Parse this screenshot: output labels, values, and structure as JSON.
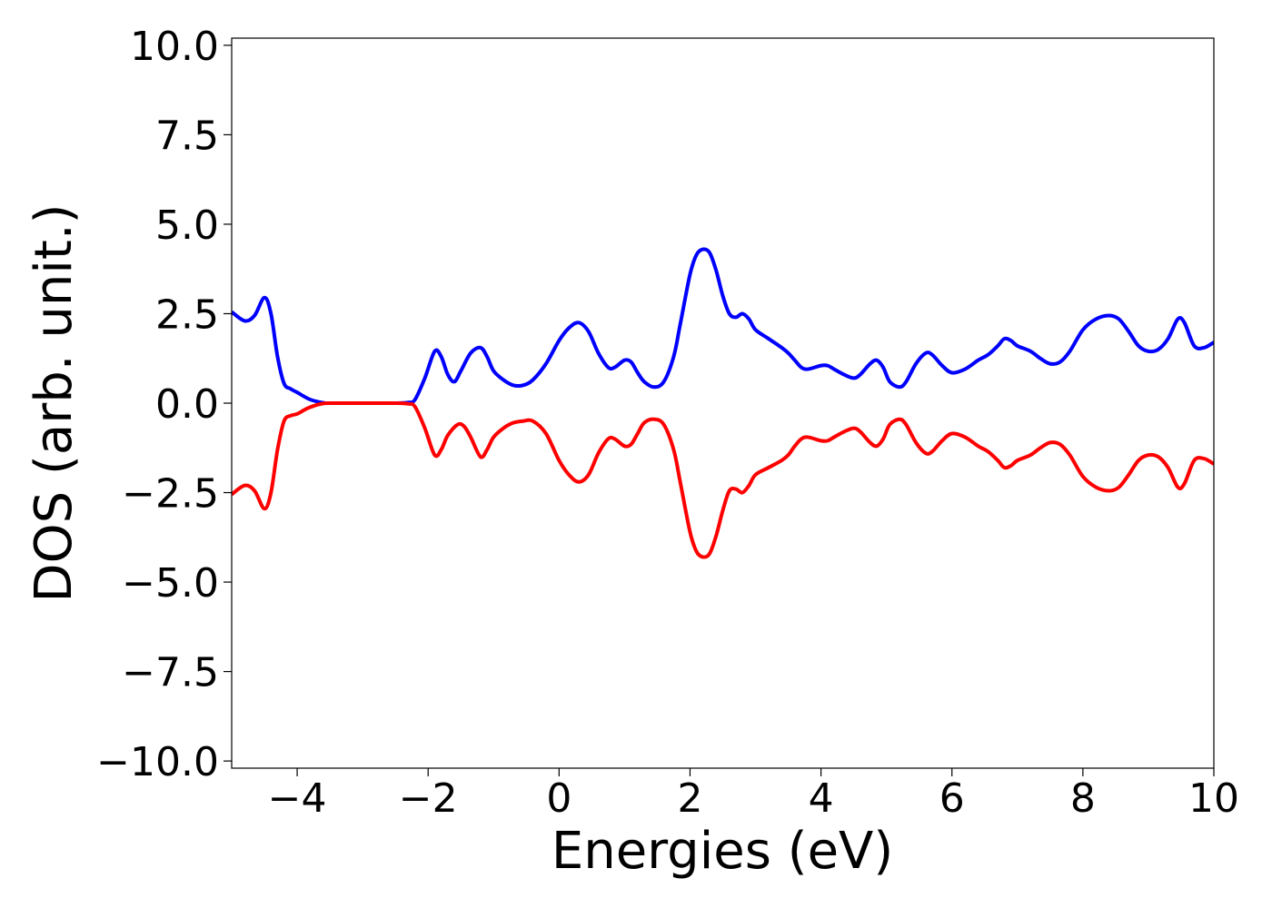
{
  "chart_data": {
    "type": "line",
    "title": "",
    "xlabel": "Energies (eV)",
    "ylabel": "DOS (arb. unit.)",
    "xlim": [
      -5,
      10
    ],
    "ylim": [
      -10.2,
      10.2
    ],
    "xticks": [
      -4,
      -2,
      0,
      2,
      4,
      6,
      8,
      10
    ],
    "xtick_labels": [
      "−4",
      "−2",
      "0",
      "2",
      "4",
      "6",
      "8",
      "10"
    ],
    "yticks": [
      10,
      7.5,
      5,
      2.5,
      0,
      -2.5,
      -5,
      -7.5,
      -10
    ],
    "ytick_labels": [
      "10.0",
      "7.5",
      "5.0",
      "2.5",
      "0.0",
      "−2.5",
      "−5.0",
      "−7.5",
      "−10.0"
    ],
    "grid": false,
    "legend": "none",
    "series": [
      {
        "color": "#0000ff",
        "x": [
          -5.0,
          -4.8,
          -4.65,
          -4.5,
          -4.4,
          -4.3,
          -4.2,
          -4.1,
          -4.0,
          -3.8,
          -3.6,
          -3.5,
          -3.0,
          -2.5,
          -2.3,
          -2.2,
          -2.05,
          -1.9,
          -1.8,
          -1.7,
          -1.6,
          -1.5,
          -1.35,
          -1.2,
          -1.1,
          -1.0,
          -0.85,
          -0.7,
          -0.55,
          -0.4,
          -0.2,
          0.0,
          0.15,
          0.3,
          0.45,
          0.6,
          0.75,
          0.85,
          1.0,
          1.1,
          1.2,
          1.3,
          1.45,
          1.6,
          1.75,
          1.85,
          2.0,
          2.1,
          2.2,
          2.3,
          2.4,
          2.5,
          2.6,
          2.7,
          2.8,
          2.9,
          3.0,
          3.2,
          3.4,
          3.5,
          3.6,
          3.7,
          3.8,
          4.0,
          4.1,
          4.2,
          4.35,
          4.5,
          4.6,
          4.75,
          4.85,
          4.95,
          5.05,
          5.2,
          5.3,
          5.45,
          5.6,
          5.7,
          5.85,
          6.0,
          6.2,
          6.4,
          6.55,
          6.7,
          6.8,
          6.9,
          7.0,
          7.2,
          7.35,
          7.5,
          7.65,
          7.8,
          8.0,
          8.2,
          8.4,
          8.55,
          8.7,
          8.85,
          9.0,
          9.15,
          9.3,
          9.45,
          9.55,
          9.7,
          9.85,
          10.0
        ],
        "y": [
          2.55,
          2.3,
          2.45,
          2.95,
          2.5,
          1.3,
          0.55,
          0.4,
          0.3,
          0.1,
          0.01,
          0.0,
          0.0,
          0.0,
          0.02,
          0.1,
          0.7,
          1.45,
          1.3,
          0.8,
          0.6,
          0.9,
          1.4,
          1.55,
          1.3,
          0.9,
          0.65,
          0.5,
          0.5,
          0.65,
          1.1,
          1.75,
          2.1,
          2.25,
          2.0,
          1.4,
          1.0,
          1.0,
          1.2,
          1.15,
          0.85,
          0.6,
          0.45,
          0.6,
          1.3,
          2.2,
          3.6,
          4.15,
          4.3,
          4.2,
          3.7,
          3.0,
          2.5,
          2.4,
          2.5,
          2.35,
          2.05,
          1.8,
          1.55,
          1.4,
          1.2,
          1.0,
          0.95,
          1.05,
          1.05,
          0.95,
          0.8,
          0.7,
          0.8,
          1.1,
          1.2,
          1.0,
          0.6,
          0.45,
          0.6,
          1.1,
          1.4,
          1.35,
          1.05,
          0.85,
          0.95,
          1.2,
          1.35,
          1.6,
          1.8,
          1.75,
          1.6,
          1.45,
          1.25,
          1.1,
          1.15,
          1.45,
          2.05,
          2.35,
          2.45,
          2.35,
          2.0,
          1.6,
          1.45,
          1.5,
          1.8,
          2.35,
          2.25,
          1.6,
          1.55,
          1.7
        ]
      },
      {
        "color": "#ff0000",
        "x": [
          -5.0,
          -4.8,
          -4.65,
          -4.5,
          -4.4,
          -4.3,
          -4.2,
          -4.1,
          -4.0,
          -3.85,
          -3.7,
          -3.6,
          -3.5,
          -3.0,
          -2.5,
          -2.3,
          -2.2,
          -2.05,
          -1.9,
          -1.8,
          -1.7,
          -1.55,
          -1.45,
          -1.35,
          -1.2,
          -1.1,
          -1.0,
          -0.85,
          -0.7,
          -0.55,
          -0.4,
          -0.2,
          0.0,
          0.15,
          0.3,
          0.45,
          0.6,
          0.75,
          0.85,
          1.0,
          1.1,
          1.2,
          1.3,
          1.45,
          1.6,
          1.75,
          1.85,
          2.0,
          2.1,
          2.2,
          2.3,
          2.4,
          2.5,
          2.6,
          2.7,
          2.8,
          2.9,
          3.0,
          3.2,
          3.4,
          3.5,
          3.6,
          3.7,
          3.8,
          4.0,
          4.1,
          4.2,
          4.35,
          4.5,
          4.6,
          4.75,
          4.85,
          4.95,
          5.05,
          5.2,
          5.3,
          5.45,
          5.6,
          5.7,
          5.85,
          6.0,
          6.2,
          6.4,
          6.55,
          6.7,
          6.8,
          6.9,
          7.0,
          7.2,
          7.35,
          7.5,
          7.65,
          7.8,
          8.0,
          8.2,
          8.4,
          8.55,
          8.7,
          8.85,
          9.0,
          9.15,
          9.3,
          9.45,
          9.55,
          9.7,
          9.85,
          10.0
        ],
        "y": [
          -2.55,
          -2.3,
          -2.45,
          -2.95,
          -2.5,
          -1.3,
          -0.5,
          -0.35,
          -0.3,
          -0.15,
          -0.05,
          -0.01,
          0.0,
          0.0,
          0.0,
          -0.02,
          -0.1,
          -0.7,
          -1.45,
          -1.3,
          -0.9,
          -0.6,
          -0.65,
          -0.95,
          -1.5,
          -1.3,
          -0.95,
          -0.7,
          -0.55,
          -0.5,
          -0.5,
          -0.85,
          -1.6,
          -2.0,
          -2.2,
          -2.0,
          -1.4,
          -1.0,
          -1.0,
          -1.2,
          -1.15,
          -0.85,
          -0.55,
          -0.45,
          -0.6,
          -1.3,
          -2.2,
          -3.6,
          -4.15,
          -4.3,
          -4.2,
          -3.7,
          -3.0,
          -2.45,
          -2.4,
          -2.5,
          -2.3,
          -2.0,
          -1.8,
          -1.6,
          -1.45,
          -1.2,
          -1.0,
          -0.95,
          -1.05,
          -1.05,
          -0.95,
          -0.8,
          -0.7,
          -0.8,
          -1.1,
          -1.2,
          -1.0,
          -0.6,
          -0.45,
          -0.6,
          -1.1,
          -1.4,
          -1.35,
          -1.05,
          -0.85,
          -0.95,
          -1.2,
          -1.35,
          -1.6,
          -1.8,
          -1.75,
          -1.6,
          -1.45,
          -1.25,
          -1.1,
          -1.15,
          -1.45,
          -2.05,
          -2.35,
          -2.45,
          -2.35,
          -2.0,
          -1.6,
          -1.45,
          -1.5,
          -1.8,
          -2.35,
          -2.25,
          -1.6,
          -1.55,
          -1.7
        ]
      }
    ]
  }
}
